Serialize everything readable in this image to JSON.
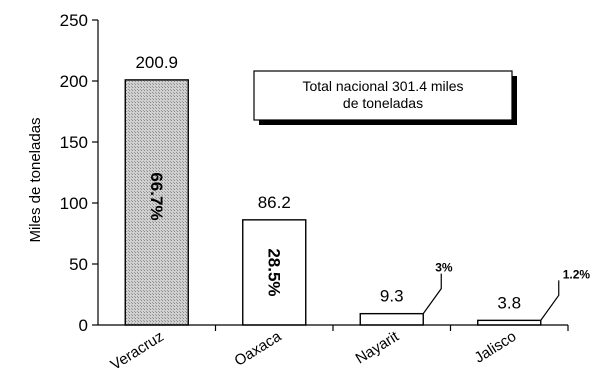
{
  "chart_data": {
    "type": "bar",
    "ylabel": "Miles de toneladas",
    "xlabel": "",
    "ylim": [
      0,
      250
    ],
    "yticks": [
      0,
      50,
      100,
      150,
      200,
      250
    ],
    "grid": false,
    "categories": [
      "Veracruz",
      "Oaxaca",
      "Nayarit",
      "Jalisco"
    ],
    "values": [
      200.9,
      86.2,
      9.3,
      3.8
    ],
    "value_labels": [
      "200.9",
      "86.2",
      "9.3",
      "3.8"
    ],
    "share_labels": [
      "66.7%",
      "28.5%",
      "3%",
      "1.2%"
    ],
    "bar_fills": [
      "#c8c8c8",
      "#ffffff",
      "#ffffff",
      "#ffffff"
    ],
    "annotation": "Total nacional 301.4 miles de toneladas",
    "annotation_lines": [
      "Total nacional 301.4 miles",
      "de toneladas"
    ]
  }
}
